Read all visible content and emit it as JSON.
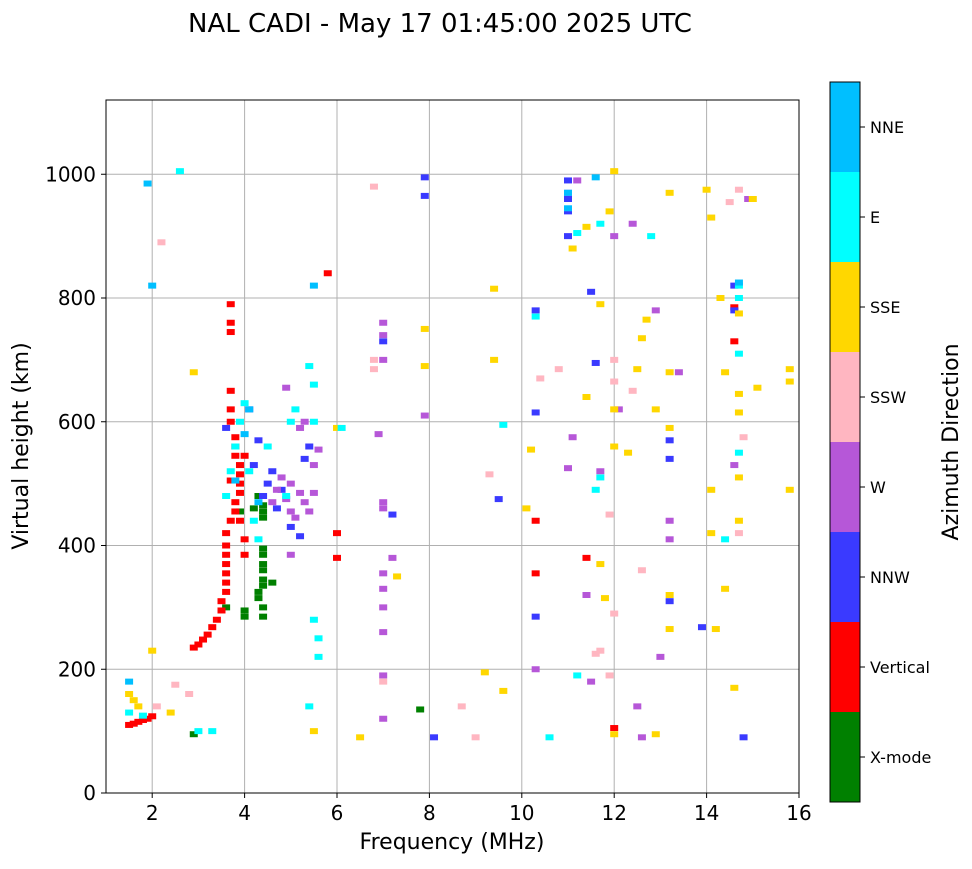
{
  "chart_data": {
    "type": "scatter",
    "title": "NAL CADI - May 17 01:45:00 2025 UTC",
    "xlabel": "Frequency (MHz)",
    "ylabel": "Virtual height (km)",
    "xlim": [
      1,
      16
    ],
    "ylim": [
      0,
      1120
    ],
    "xticks": [
      2,
      4,
      6,
      8,
      10,
      12,
      14,
      16
    ],
    "yticks": [
      0,
      200,
      400,
      600,
      800,
      1000
    ],
    "grid": true,
    "colorbar": {
      "label": "Azimuth Direction",
      "categories": [
        {
          "name": "X-mode",
          "color": "#008000"
        },
        {
          "name": "Vertical",
          "color": "#ff0000"
        },
        {
          "name": "NNW",
          "color": "#3a3aff"
        },
        {
          "name": "W",
          "color": "#b657d8"
        },
        {
          "name": "SSW",
          "color": "#ffb6c1"
        },
        {
          "name": "SSE",
          "color": "#ffd700"
        },
        {
          "name": "E",
          "color": "#00ffff"
        },
        {
          "name": "NNE",
          "color": "#00bfff"
        }
      ]
    },
    "series": [
      {
        "name": "X-mode",
        "points": [
          [
            4.4,
            285
          ],
          [
            4.4,
            300
          ],
          [
            4.3,
            315
          ],
          [
            4.3,
            325
          ],
          [
            4.4,
            335
          ],
          [
            4.4,
            345
          ],
          [
            4.4,
            360
          ],
          [
            4.4,
            370
          ],
          [
            4.4,
            385
          ],
          [
            4.4,
            395
          ],
          [
            4.4,
            445
          ],
          [
            4.4,
            455
          ],
          [
            4.4,
            465
          ],
          [
            4.3,
            480
          ],
          [
            4.0,
            285
          ],
          [
            4.0,
            295
          ],
          [
            4.6,
            340
          ],
          [
            7.8,
            135
          ],
          [
            2.9,
            95
          ],
          [
            3.6,
            300
          ],
          [
            4.2,
            460
          ],
          [
            3.9,
            455
          ]
        ]
      },
      {
        "name": "Vertical",
        "points": [
          [
            1.5,
            110
          ],
          [
            1.6,
            112
          ],
          [
            1.7,
            115
          ],
          [
            1.8,
            118
          ],
          [
            1.9,
            120
          ],
          [
            2.0,
            124
          ],
          [
            2.9,
            235
          ],
          [
            3.0,
            240
          ],
          [
            3.1,
            248
          ],
          [
            3.2,
            256
          ],
          [
            3.3,
            268
          ],
          [
            3.4,
            280
          ],
          [
            3.5,
            295
          ],
          [
            3.5,
            310
          ],
          [
            3.6,
            325
          ],
          [
            3.6,
            340
          ],
          [
            3.6,
            355
          ],
          [
            3.6,
            370
          ],
          [
            3.6,
            385
          ],
          [
            3.6,
            400
          ],
          [
            3.6,
            420
          ],
          [
            3.7,
            440
          ],
          [
            3.8,
            455
          ],
          [
            3.8,
            470
          ],
          [
            3.9,
            485
          ],
          [
            3.9,
            500
          ],
          [
            3.9,
            515
          ],
          [
            3.9,
            530
          ],
          [
            3.8,
            545
          ],
          [
            3.8,
            560
          ],
          [
            3.8,
            575
          ],
          [
            3.7,
            600
          ],
          [
            3.7,
            620
          ],
          [
            3.7,
            650
          ],
          [
            3.7,
            745
          ],
          [
            3.7,
            760
          ],
          [
            3.7,
            790
          ],
          [
            4.0,
            385
          ],
          [
            4.0,
            410
          ],
          [
            3.9,
            440
          ],
          [
            3.7,
            505
          ],
          [
            4.0,
            545
          ],
          [
            6.0,
            380
          ],
          [
            6.0,
            420
          ],
          [
            10.3,
            355
          ],
          [
            10.3,
            440
          ],
          [
            14.6,
            730
          ],
          [
            14.6,
            785
          ],
          [
            11.4,
            380
          ],
          [
            12.0,
            105
          ],
          [
            5.8,
            840
          ]
        ]
      },
      {
        "name": "NNW",
        "points": [
          [
            3.6,
            590
          ],
          [
            4.1,
            620
          ],
          [
            4.2,
            530
          ],
          [
            4.3,
            570
          ],
          [
            4.4,
            480
          ],
          [
            4.5,
            500
          ],
          [
            4.6,
            520
          ],
          [
            4.7,
            460
          ],
          [
            4.8,
            490
          ],
          [
            5.0,
            430
          ],
          [
            5.2,
            415
          ],
          [
            5.3,
            540
          ],
          [
            5.4,
            560
          ],
          [
            7.0,
            730
          ],
          [
            7.2,
            450
          ],
          [
            7.9,
            995
          ],
          [
            7.9,
            965
          ],
          [
            10.3,
            615
          ],
          [
            10.3,
            285
          ],
          [
            10.3,
            780
          ],
          [
            11.0,
            990
          ],
          [
            11.0,
            970
          ],
          [
            11.0,
            960
          ],
          [
            11.0,
            940
          ],
          [
            11.0,
            900
          ],
          [
            11.6,
            695
          ],
          [
            13.2,
            570
          ],
          [
            13.2,
            540
          ],
          [
            13.2,
            310
          ],
          [
            14.8,
            90
          ],
          [
            14.6,
            780
          ],
          [
            14.6,
            820
          ],
          [
            9.5,
            475
          ],
          [
            11.5,
            810
          ],
          [
            13.9,
            268
          ],
          [
            8.1,
            90
          ]
        ]
      },
      {
        "name": "W",
        "points": [
          [
            4.6,
            470
          ],
          [
            4.7,
            490
          ],
          [
            4.8,
            510
          ],
          [
            4.9,
            475
          ],
          [
            5.0,
            455
          ],
          [
            5.0,
            500
          ],
          [
            5.1,
            445
          ],
          [
            5.2,
            485
          ],
          [
            5.3,
            470
          ],
          [
            5.4,
            455
          ],
          [
            5.5,
            485
          ],
          [
            5.5,
            530
          ],
          [
            5.6,
            555
          ],
          [
            5.2,
            590
          ],
          [
            5.3,
            600
          ],
          [
            4.9,
            655
          ],
          [
            5.0,
            385
          ],
          [
            7.0,
            355
          ],
          [
            7.0,
            330
          ],
          [
            7.0,
            300
          ],
          [
            7.0,
            260
          ],
          [
            7.0,
            190
          ],
          [
            7.0,
            120
          ],
          [
            7.0,
            760
          ],
          [
            7.0,
            740
          ],
          [
            7.0,
            700
          ],
          [
            6.9,
            580
          ],
          [
            7.0,
            470
          ],
          [
            7.0,
            460
          ],
          [
            7.9,
            610
          ],
          [
            10.3,
            200
          ],
          [
            11.0,
            525
          ],
          [
            11.1,
            575
          ],
          [
            11.4,
            320
          ],
          [
            11.5,
            180
          ],
          [
            12.0,
            900
          ],
          [
            12.4,
            920
          ],
          [
            12.6,
            90
          ],
          [
            12.5,
            140
          ],
          [
            12.9,
            780
          ],
          [
            13.2,
            440
          ],
          [
            13.2,
            410
          ],
          [
            13.0,
            220
          ],
          [
            14.6,
            530
          ],
          [
            14.9,
            960
          ],
          [
            11.2,
            990
          ],
          [
            11.7,
            520
          ],
          [
            7.2,
            380
          ],
          [
            12.1,
            620
          ],
          [
            13.4,
            680
          ]
        ]
      },
      {
        "name": "SSW",
        "points": [
          [
            2.2,
            890
          ],
          [
            2.1,
            140
          ],
          [
            2.5,
            175
          ],
          [
            2.8,
            160
          ],
          [
            6.8,
            700
          ],
          [
            6.8,
            685
          ],
          [
            7.0,
            180
          ],
          [
            9.3,
            515
          ],
          [
            9.0,
            90
          ],
          [
            8.7,
            140
          ],
          [
            10.4,
            670
          ],
          [
            10.8,
            685
          ],
          [
            11.7,
            230
          ],
          [
            11.6,
            225
          ],
          [
            12.0,
            700
          ],
          [
            12.0,
            665
          ],
          [
            12.0,
            290
          ],
          [
            11.9,
            450
          ],
          [
            12.6,
            360
          ],
          [
            14.8,
            575
          ],
          [
            14.7,
            420
          ],
          [
            14.7,
            975
          ],
          [
            14.5,
            955
          ],
          [
            6.8,
            980
          ],
          [
            11.9,
            190
          ],
          [
            12.4,
            650
          ]
        ]
      },
      {
        "name": "SSE",
        "points": [
          [
            1.5,
            160
          ],
          [
            1.6,
            150
          ],
          [
            1.7,
            140
          ],
          [
            2.4,
            130
          ],
          [
            2.0,
            230
          ],
          [
            2.9,
            680
          ],
          [
            5.5,
            100
          ],
          [
            6.5,
            90
          ],
          [
            6.0,
            590
          ],
          [
            7.3,
            350
          ],
          [
            7.9,
            750
          ],
          [
            7.9,
            690
          ],
          [
            9.2,
            195
          ],
          [
            9.4,
            700
          ],
          [
            9.4,
            815
          ],
          [
            9.6,
            165
          ],
          [
            10.1,
            460
          ],
          [
            10.2,
            555
          ],
          [
            11.1,
            880
          ],
          [
            11.4,
            915
          ],
          [
            11.7,
            790
          ],
          [
            11.7,
            370
          ],
          [
            11.8,
            315
          ],
          [
            11.9,
            940
          ],
          [
            12.0,
            1005
          ],
          [
            12.0,
            620
          ],
          [
            12.0,
            560
          ],
          [
            12.0,
            95
          ],
          [
            12.3,
            550
          ],
          [
            12.5,
            685
          ],
          [
            12.6,
            735
          ],
          [
            12.7,
            765
          ],
          [
            12.9,
            95
          ],
          [
            13.2,
            970
          ],
          [
            13.2,
            680
          ],
          [
            13.2,
            590
          ],
          [
            13.2,
            320
          ],
          [
            13.2,
            265
          ],
          [
            14.0,
            975
          ],
          [
            14.1,
            930
          ],
          [
            14.1,
            490
          ],
          [
            14.1,
            420
          ],
          [
            14.3,
            800
          ],
          [
            14.4,
            680
          ],
          [
            14.4,
            330
          ],
          [
            14.6,
            170
          ],
          [
            14.7,
            775
          ],
          [
            14.7,
            645
          ],
          [
            14.7,
            615
          ],
          [
            14.7,
            510
          ],
          [
            14.7,
            440
          ],
          [
            15.0,
            960
          ],
          [
            15.1,
            655
          ],
          [
            15.8,
            685
          ],
          [
            15.8,
            665
          ],
          [
            15.8,
            490
          ],
          [
            11.4,
            640
          ],
          [
            14.2,
            265
          ],
          [
            12.9,
            620
          ]
        ]
      },
      {
        "name": "E",
        "points": [
          [
            1.5,
            130
          ],
          [
            1.8,
            125
          ],
          [
            2.6,
            1005
          ],
          [
            3.0,
            100
          ],
          [
            3.3,
            100
          ],
          [
            3.6,
            480
          ],
          [
            3.7,
            520
          ],
          [
            3.8,
            560
          ],
          [
            3.9,
            600
          ],
          [
            4.0,
            630
          ],
          [
            4.1,
            520
          ],
          [
            4.2,
            440
          ],
          [
            4.3,
            410
          ],
          [
            4.5,
            560
          ],
          [
            5.1,
            620
          ],
          [
            5.4,
            690
          ],
          [
            5.5,
            660
          ],
          [
            5.5,
            600
          ],
          [
            5.5,
            280
          ],
          [
            5.4,
            140
          ],
          [
            5.6,
            250
          ],
          [
            5.6,
            220
          ],
          [
            6.1,
            590
          ],
          [
            9.6,
            595
          ],
          [
            10.3,
            770
          ],
          [
            10.6,
            90
          ],
          [
            11.2,
            190
          ],
          [
            11.2,
            905
          ],
          [
            11.6,
            490
          ],
          [
            11.7,
            510
          ],
          [
            12.8,
            900
          ],
          [
            14.4,
            410
          ],
          [
            14.7,
            550
          ],
          [
            14.7,
            710
          ],
          [
            14.7,
            800
          ],
          [
            14.7,
            820
          ],
          [
            11.7,
            920
          ],
          [
            5.0,
            600
          ],
          [
            4.9,
            480
          ]
        ]
      },
      {
        "name": "NNE",
        "points": [
          [
            1.5,
            180
          ],
          [
            1.9,
            985
          ],
          [
            2.0,
            820
          ],
          [
            4.0,
            580
          ],
          [
            4.3,
            470
          ],
          [
            5.5,
            820
          ],
          [
            11.0,
            945
          ],
          [
            11.0,
            970
          ],
          [
            11.6,
            995
          ],
          [
            14.7,
            825
          ],
          [
            4.1,
            620
          ],
          [
            3.8,
            505
          ]
        ]
      }
    ]
  }
}
